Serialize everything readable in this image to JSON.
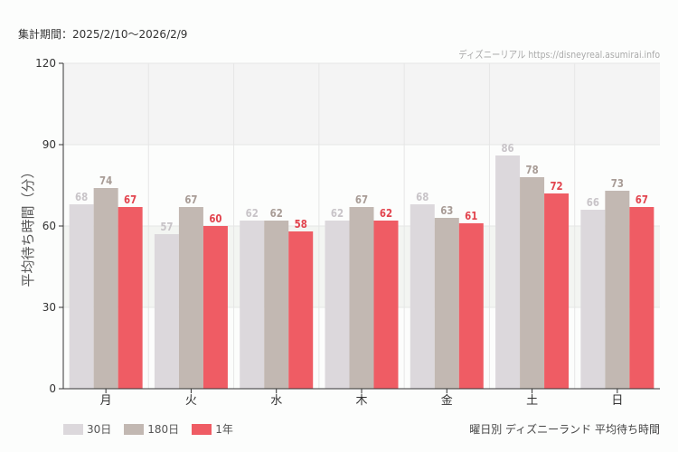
{
  "period_label": "集計期間：2025/2/10〜2026/2/9",
  "credit": "ディズニーリアル https://disneyreal.asumirai.info",
  "subtitle": "曜日別 ディズニーランド 平均待ち時間",
  "chart_data": {
    "type": "bar",
    "ylabel": "平均待ち時間（分）",
    "xlabel": "",
    "ylim": [
      0,
      120
    ],
    "yticks": [
      0,
      30,
      60,
      90,
      120
    ],
    "grid": true,
    "legend": "bottom-left",
    "categories": [
      "月",
      "火",
      "水",
      "木",
      "金",
      "土",
      "日"
    ],
    "series": [
      {
        "name": "30日",
        "color": "#dcd8dc",
        "label_color": "#c8c4c8",
        "values": [
          68,
          57,
          62,
          62,
          68,
          86,
          66
        ]
      },
      {
        "name": "180日",
        "color": "#c2b8b2",
        "label_color": "#a89c96",
        "values": [
          74,
          67,
          62,
          67,
          63,
          78,
          73
        ]
      },
      {
        "name": "1年",
        "color": "#ef5c64",
        "label_color": "#e2444e",
        "values": [
          67,
          60,
          58,
          62,
          61,
          72,
          67
        ]
      }
    ]
  }
}
